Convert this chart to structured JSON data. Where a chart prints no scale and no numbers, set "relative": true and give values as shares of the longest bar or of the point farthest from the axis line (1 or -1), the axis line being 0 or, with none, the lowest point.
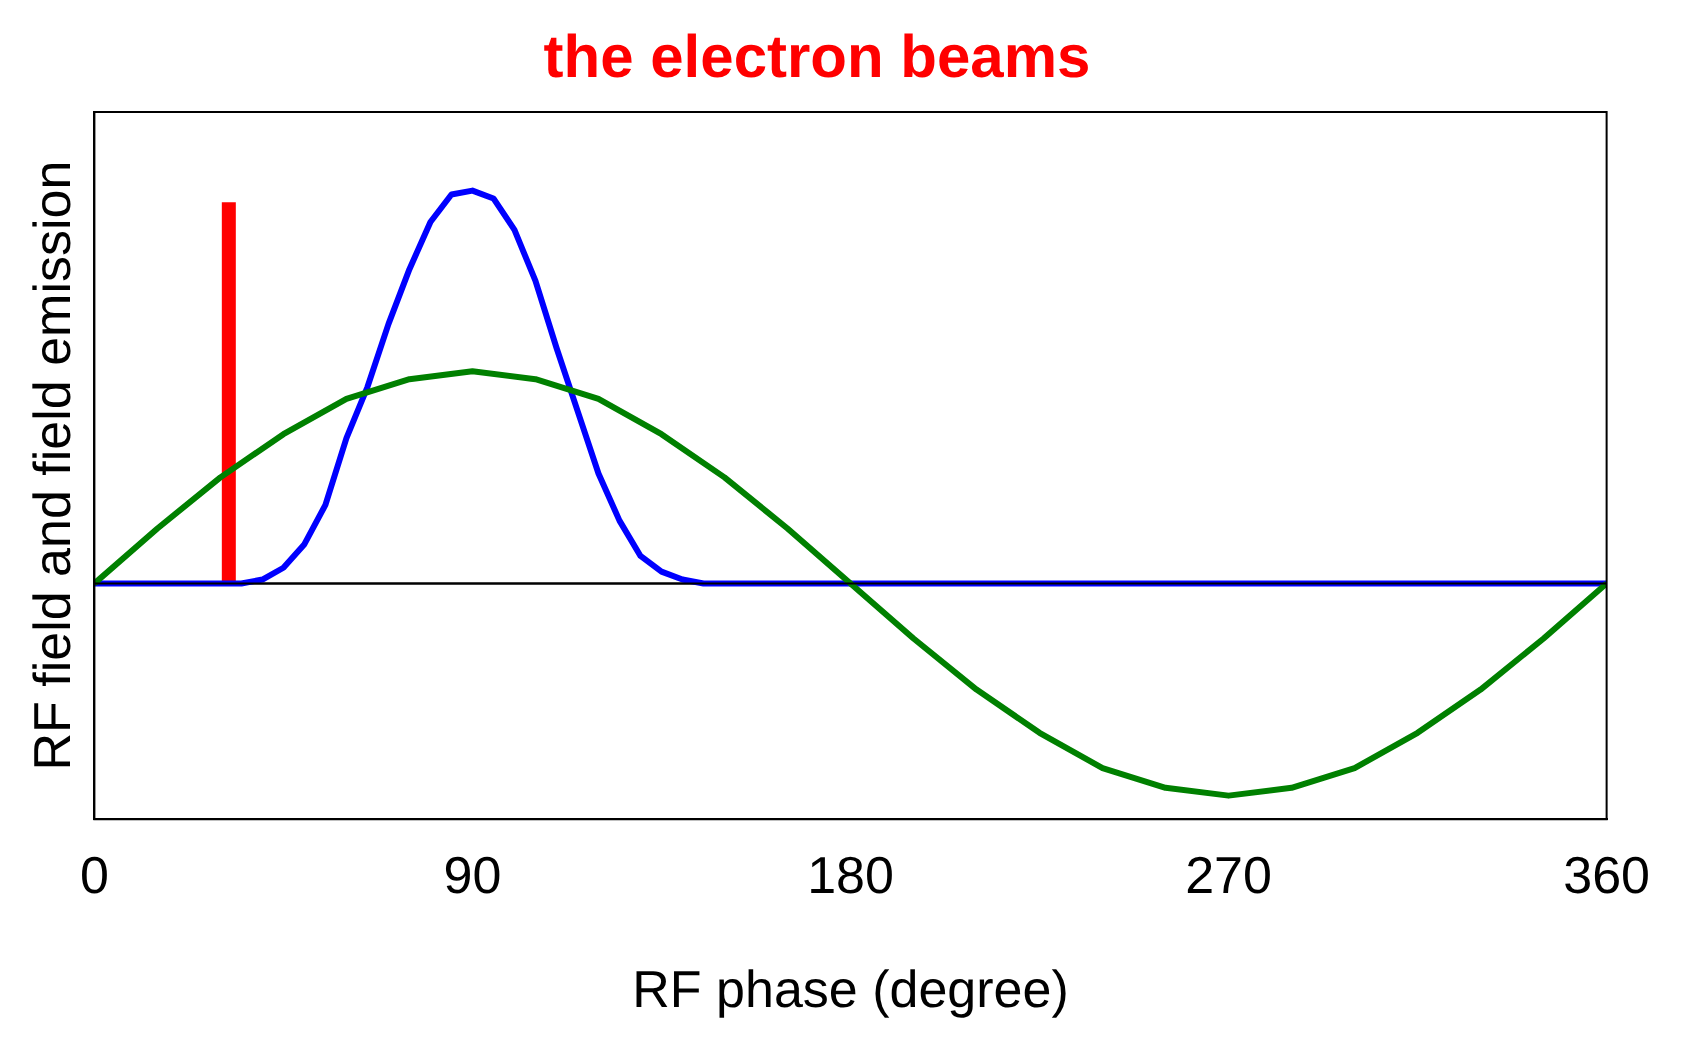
{
  "chart_data": {
    "type": "line",
    "title": "the electron beams",
    "xlabel": "RF phase (degree)",
    "ylabel": "RF field and field emission",
    "relative": true,
    "xlim": [
      0,
      360
    ],
    "xticks": [
      0,
      90,
      180,
      270,
      360
    ],
    "grid": false,
    "legend": false,
    "marker": "none",
    "line_style": "solid",
    "series": [
      {
        "color": "#008000",
        "x": [
          0,
          15,
          30,
          45,
          60,
          75,
          90,
          105,
          120,
          135,
          150,
          165,
          180,
          195,
          210,
          225,
          240,
          255,
          270,
          285,
          300,
          315,
          330,
          345,
          360
        ],
        "values": [
          0,
          0.14,
          0.27,
          0.38,
          0.47,
          0.52,
          0.54,
          0.52,
          0.47,
          0.38,
          0.27,
          0.14,
          0,
          -0.14,
          -0.27,
          -0.38,
          -0.47,
          -0.52,
          -0.54,
          -0.52,
          -0.47,
          -0.38,
          -0.27,
          -0.14,
          0
        ]
      },
      {
        "color": "#0000ff",
        "x": [
          0,
          35,
          40,
          45,
          50,
          55,
          60,
          65,
          70,
          75,
          80,
          85,
          90,
          95,
          100,
          105,
          110,
          115,
          120,
          125,
          130,
          135,
          140,
          145,
          360
        ],
        "values": [
          0,
          0,
          0.01,
          0.04,
          0.1,
          0.2,
          0.37,
          0.5,
          0.66,
          0.8,
          0.92,
          0.99,
          1,
          0.98,
          0.9,
          0.77,
          0.6,
          0.44,
          0.28,
          0.16,
          0.07,
          0.03,
          0.01,
          0,
          0
        ]
      },
      {
        "color": "#ff0000",
        "x": [
          32,
          32
        ],
        "values": [
          0,
          0.97
        ]
      }
    ]
  }
}
